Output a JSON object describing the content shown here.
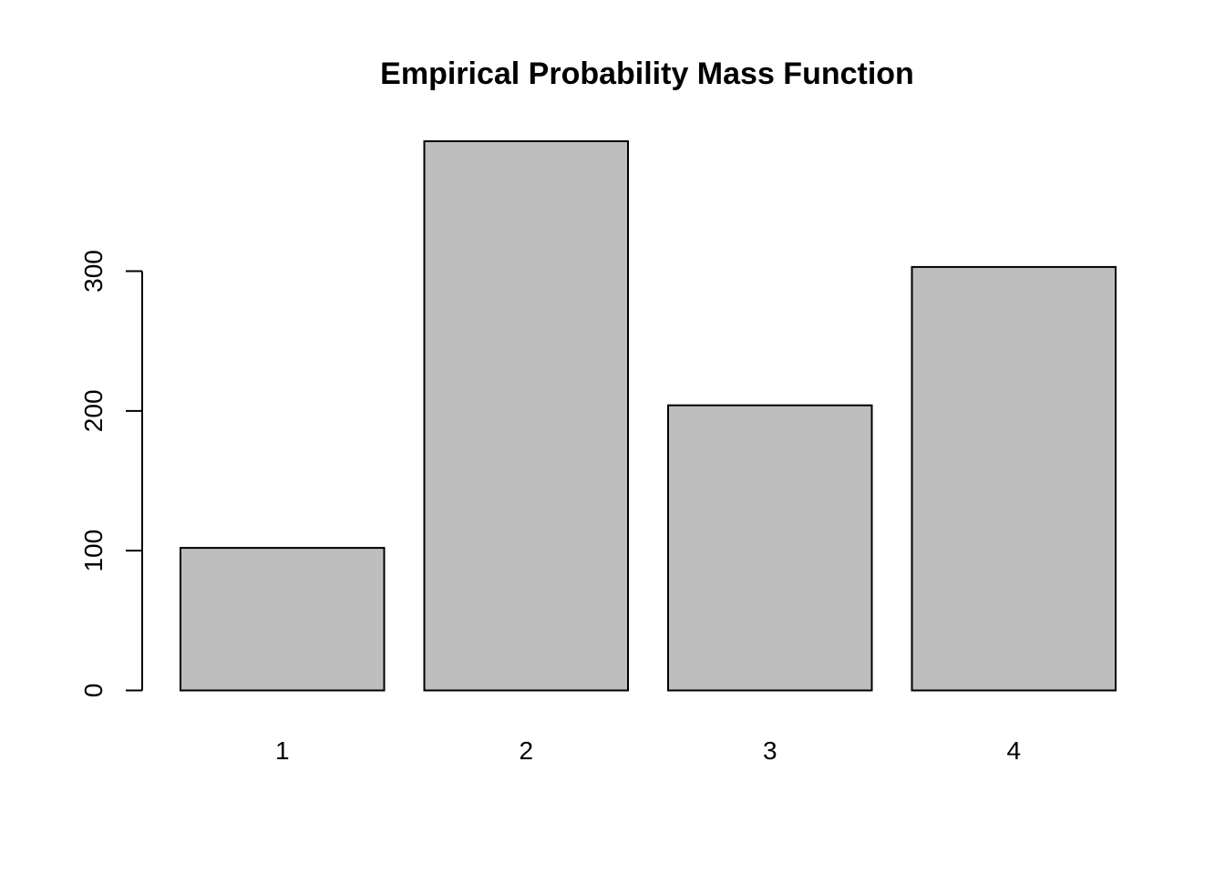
{
  "chart_data": {
    "type": "bar",
    "title": "Empirical Probability Mass Function",
    "categories": [
      "1",
      "2",
      "3",
      "4"
    ],
    "values": [
      102,
      393,
      204,
      303
    ],
    "xlabel": "",
    "ylabel": "",
    "yticks": [
      0,
      100,
      200,
      300
    ],
    "ylim": [
      0,
      393
    ],
    "grid": false,
    "legend": "none",
    "bar_fill_color": "#bebebe",
    "bar_stroke_color": "#000000",
    "axis_color": "#000000",
    "background_color": "#ffffff",
    "y_tick_labels_rotated": true
  }
}
